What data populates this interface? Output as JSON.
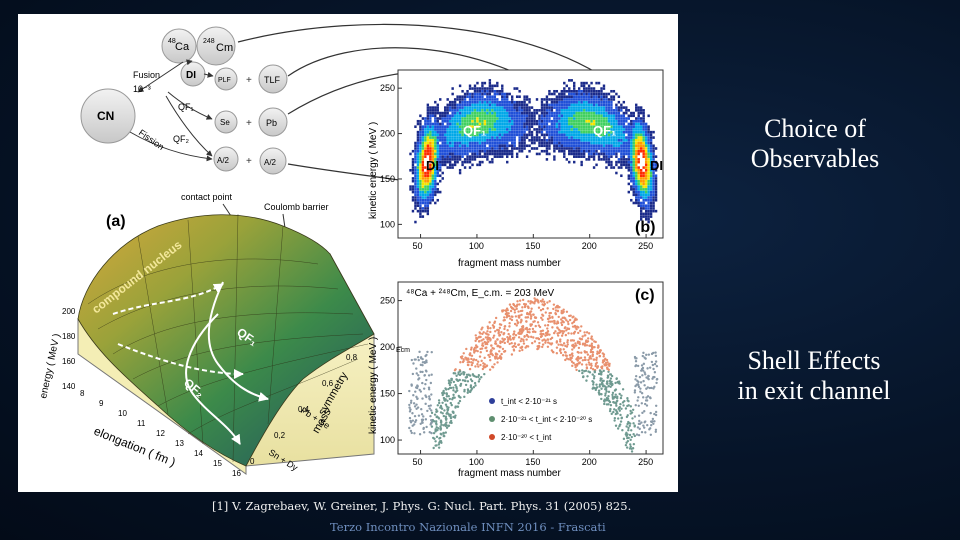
{
  "slide": {
    "observables_text": "Choice of\nObservables",
    "shell_text": "Shell Effects\nin exit channel",
    "reference": "[1] V. Zagrebaev, W. Greiner, J. Phys. G: Nucl. Part. Phys. 31 (2005) 825.",
    "footer": "Terzo Incontro Nazionale INFN 2016 - Frascati"
  },
  "scheme": {
    "projectile_mass": "48",
    "projectile": "Ca",
    "target_mass": "248",
    "target": "Cm",
    "cn": "CN",
    "di": "DI",
    "pilf": "PLF",
    "tlf": "TLF",
    "se": "Se",
    "pb": "Pb",
    "a2_left": "A/2",
    "a2_right": "A/2",
    "fusion": "Fusion",
    "fusion_prob": "10⁻³",
    "fission": "Fission",
    "qf1": "QF₁",
    "qf2": "QF₂"
  },
  "panel_a": {
    "label": "(a)",
    "contact_point": "contact  point",
    "coulomb_barrier": "Coulomb  barrier",
    "compound_nucleus": "compound nucleus",
    "qf1": "QF₁",
    "qf2": "QF₂",
    "energy_axis": "energy ( MeV )",
    "energy_ticks": [
      "200",
      "180",
      "160",
      "140"
    ],
    "elongation_axis": "elongation ( fm )",
    "elongation_ticks": [
      "8",
      "9",
      "10",
      "11",
      "12",
      "13",
      "14",
      "15",
      "16"
    ],
    "mass_axis": "mass",
    "symmetry_axis": "symmetry",
    "asym_ticks": [
      "0",
      "0,2",
      "0,4",
      "0,6",
      "0,8"
    ],
    "pb_se": "Pb + Se",
    "sn_dy": "Sn + Dy"
  },
  "chart_data": [
    {
      "type": "heatmap",
      "label": "(b)",
      "xlabel": "fragment mass number",
      "ylabel": "kinetic energy ( MeV )",
      "xlim": [
        30,
        265
      ],
      "ylim": [
        85,
        270
      ],
      "x_ticks": [
        "50",
        "100",
        "150",
        "200",
        "250"
      ],
      "y_ticks": [
        "100",
        "150",
        "200",
        "250"
      ],
      "annotations": [
        "DI",
        "QF₁",
        "QF₁",
        "DI"
      ]
    },
    {
      "type": "scatter",
      "label": "(c)",
      "title_line": "⁴⁸Ca + ²⁴⁸Cm,  E_c.m. = 203 MeV",
      "xlabel": "fragment mass number",
      "ylabel": "kinetic  energy ( MeV )",
      "xlim": [
        30,
        265
      ],
      "ylim": [
        85,
        270
      ],
      "x_ticks": [
        "50",
        "100",
        "150",
        "200",
        "250"
      ],
      "y_ticks": [
        "100",
        "150",
        "200",
        "250"
      ],
      "ecm_marker": "Ecm",
      "legend": [
        {
          "text": "t_int < 2·10⁻²¹ s",
          "color": "#2e3f9a"
        },
        {
          "text": "2·10⁻²¹ < t_int < 2·10⁻²⁰ s",
          "color": "#5f8f70"
        },
        {
          "text": "2·10⁻²⁰ < t_int",
          "color": "#d04828"
        }
      ],
      "series_colors": {
        "grey": "#8a9aa8",
        "salmon": "#e8906e",
        "teal": "#6f9a90"
      }
    }
  ]
}
